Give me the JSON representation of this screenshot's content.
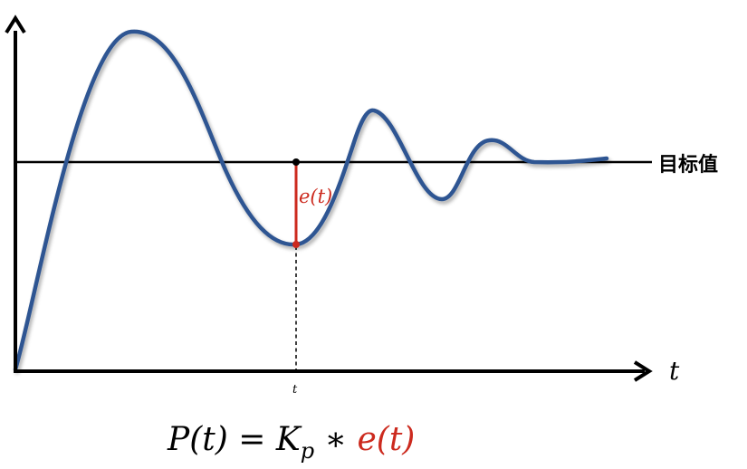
{
  "diagram": {
    "target_label": "目标值",
    "x_axis_label": "t",
    "tick_label": "t",
    "error_label": "e(t)",
    "formula": {
      "lhs": "P(t)",
      "equals": " = ",
      "gain": "K",
      "gain_subscript": "p",
      "operator": " ∗ ",
      "error": "e(t)"
    },
    "colors": {
      "curve": "#2e5592",
      "error": "#cc2a1e",
      "axis": "#000000",
      "target_line": "#000000",
      "background": "#ffffff"
    }
  }
}
